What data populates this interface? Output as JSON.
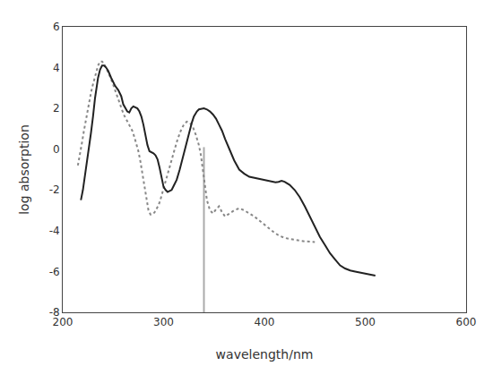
{
  "chart_data": {
    "type": "line",
    "xlabel": "wavelength/nm",
    "ylabel": "log absorption",
    "xlim": [
      200,
      600
    ],
    "ylim": [
      -8,
      6
    ],
    "xticks": [
      200,
      300,
      400,
      500,
      600
    ],
    "yticks": [
      -8,
      -6,
      -4,
      -2,
      0,
      2,
      4,
      6
    ],
    "grid": false,
    "series": [
      {
        "color": "#222222",
        "line_style": "solid",
        "x": [
          218,
          220,
          222,
          225,
          228,
          230,
          232,
          235,
          237,
          239,
          241,
          243,
          245,
          248,
          250,
          252,
          255,
          258,
          260,
          262,
          264,
          266,
          268,
          270,
          272,
          274,
          276,
          278,
          280,
          282,
          284,
          286,
          288,
          290,
          292,
          294,
          296,
          298,
          300,
          302,
          304,
          306,
          308,
          310,
          313,
          316,
          319,
          322,
          325,
          328,
          330,
          333,
          335,
          338,
          340,
          343,
          346,
          349,
          352,
          355,
          358,
          361,
          364,
          367,
          370,
          375,
          380,
          385,
          390,
          395,
          400,
          405,
          408,
          411,
          414,
          417,
          420,
          425,
          430,
          435,
          440,
          445,
          450,
          455,
          460,
          465,
          470,
          475,
          480,
          485,
          490,
          495,
          500,
          505,
          510
        ],
        "values": [
          -2.5,
          -2.0,
          -1.3,
          -0.3,
          0.8,
          1.6,
          2.5,
          3.5,
          3.9,
          4.1,
          4.1,
          4.0,
          3.85,
          3.5,
          3.3,
          3.1,
          2.9,
          2.6,
          2.2,
          2.0,
          1.85,
          1.8,
          2.0,
          2.1,
          2.05,
          2.0,
          1.85,
          1.6,
          1.2,
          0.7,
          0.2,
          -0.1,
          -0.15,
          -0.2,
          -0.3,
          -0.5,
          -0.9,
          -1.4,
          -1.85,
          -2.0,
          -2.1,
          -2.05,
          -2.0,
          -1.8,
          -1.5,
          -1.0,
          -0.4,
          0.2,
          0.8,
          1.3,
          1.6,
          1.85,
          1.95,
          2.0,
          2.0,
          1.95,
          1.85,
          1.7,
          1.5,
          1.2,
          0.9,
          0.5,
          0.15,
          -0.2,
          -0.55,
          -1.0,
          -1.2,
          -1.35,
          -1.4,
          -1.45,
          -1.5,
          -1.55,
          -1.6,
          -1.62,
          -1.6,
          -1.55,
          -1.6,
          -1.75,
          -2.0,
          -2.35,
          -2.8,
          -3.3,
          -3.8,
          -4.3,
          -4.7,
          -5.1,
          -5.4,
          -5.7,
          -5.85,
          -5.95,
          -6.0,
          -6.05,
          -6.1,
          -6.15,
          -6.2
        ]
      },
      {
        "color": "#888888",
        "line_style": "dotted",
        "x": [
          215,
          217,
          219,
          221,
          223,
          225,
          227,
          229,
          231,
          233,
          235,
          237,
          239,
          241,
          243,
          245,
          247,
          249,
          251,
          253,
          255,
          257,
          259,
          261,
          263,
          265,
          267,
          269,
          271,
          273,
          275,
          277,
          279,
          281,
          283,
          285,
          287,
          289,
          291,
          293,
          295,
          297,
          299,
          301,
          303,
          305,
          308,
          311,
          314,
          317,
          320,
          323,
          326,
          329,
          332,
          335,
          337,
          340,
          343,
          346,
          349,
          352,
          355,
          358,
          361,
          364,
          367,
          370,
          375,
          380,
          385,
          390,
          395,
          400,
          405,
          410,
          415,
          420,
          425,
          430,
          435,
          440,
          445,
          450
        ],
        "values": [
          -0.8,
          -0.3,
          0.3,
          0.9,
          1.5,
          2.0,
          2.5,
          3.0,
          3.4,
          3.8,
          4.1,
          4.3,
          4.3,
          4.2,
          4.0,
          3.8,
          3.55,
          3.3,
          3.0,
          2.75,
          2.5,
          2.2,
          1.9,
          1.65,
          1.45,
          1.3,
          1.1,
          0.9,
          0.6,
          0.25,
          -0.1,
          -0.6,
          -1.2,
          -1.8,
          -2.4,
          -3.0,
          -3.2,
          -3.2,
          -3.1,
          -2.95,
          -2.75,
          -2.45,
          -2.1,
          -1.7,
          -1.3,
          -1.0,
          -0.5,
          0.0,
          0.5,
          0.9,
          1.2,
          1.35,
          1.3,
          1.1,
          0.7,
          0.2,
          -0.3,
          -1.5,
          -2.5,
          -3.0,
          -3.15,
          -2.95,
          -2.8,
          -3.1,
          -3.3,
          -3.2,
          -3.1,
          -3.0,
          -2.9,
          -3.0,
          -3.15,
          -3.3,
          -3.5,
          -3.7,
          -3.9,
          -4.1,
          -4.25,
          -4.35,
          -4.4,
          -4.45,
          -4.5,
          -4.52,
          -4.53,
          -4.55
        ]
      },
      {
        "color": "#aaaaaa",
        "line_style": "solid",
        "x": [
          340,
          340
        ],
        "values": [
          -8,
          0.1
        ]
      }
    ]
  }
}
